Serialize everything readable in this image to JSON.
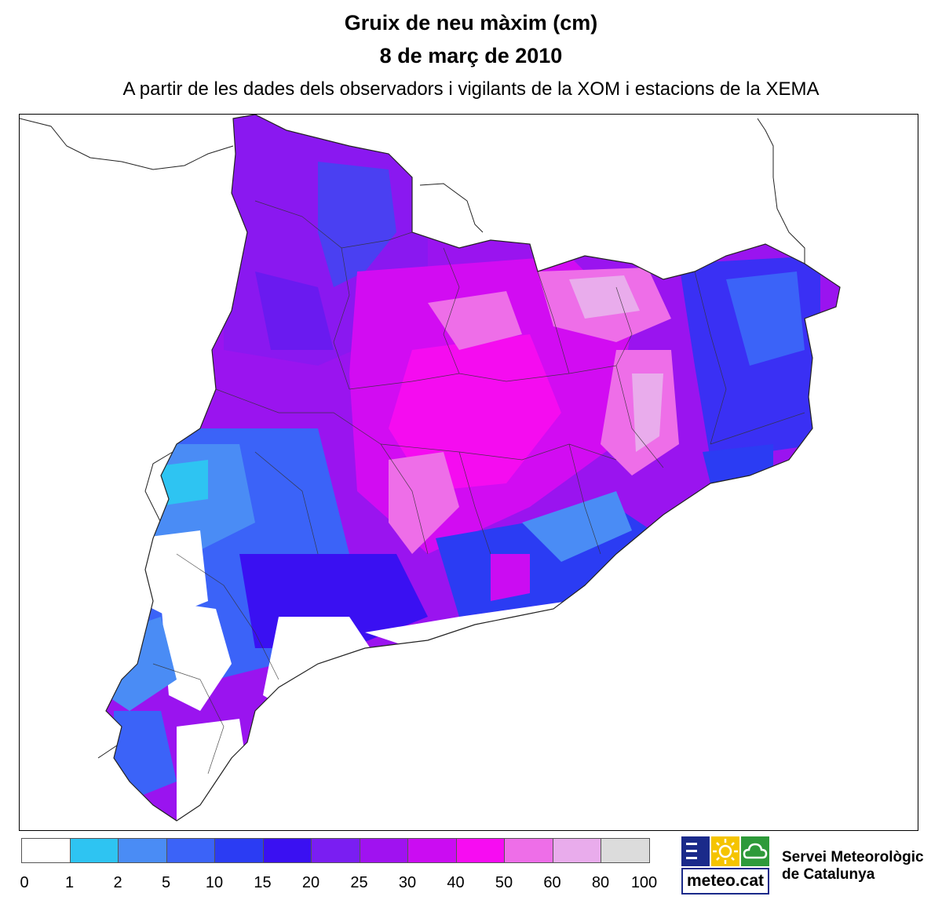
{
  "header": {
    "title": "Gruix de neu màxim (cm)",
    "date": "8 de març de 2010",
    "subtitle": "A partir de les dades dels observadors i vigilants de la XOM i estacions de la XEMA"
  },
  "legend": {
    "bins": [
      {
        "color": "#ffffff"
      },
      {
        "color": "#2ec4f2"
      },
      {
        "color": "#4a8cf5"
      },
      {
        "color": "#3b63f8"
      },
      {
        "color": "#2b3cf3"
      },
      {
        "color": "#3a10f2"
      },
      {
        "color": "#7a1ef2"
      },
      {
        "color": "#a012f0"
      },
      {
        "color": "#cb0cf2"
      },
      {
        "color": "#f70cf2"
      },
      {
        "color": "#ee6ee8"
      },
      {
        "color": "#e9acec"
      },
      {
        "color": "#dcdcdc"
      }
    ],
    "ticks": [
      "0",
      "1",
      "2",
      "5",
      "10",
      "15",
      "20",
      "25",
      "30",
      "40",
      "50",
      "60",
      "80",
      "100"
    ]
  },
  "logo": {
    "text": "meteo.cat",
    "icons": [
      "bars-icon",
      "sun-icon",
      "cloud-icon"
    ],
    "colors": {
      "navy": "#1a2a8a",
      "yellow": "#f5c400",
      "green": "#2e9a3a"
    }
  },
  "organization": {
    "line1": "Servei Meteorològic",
    "line2": "de Catalunya"
  }
}
